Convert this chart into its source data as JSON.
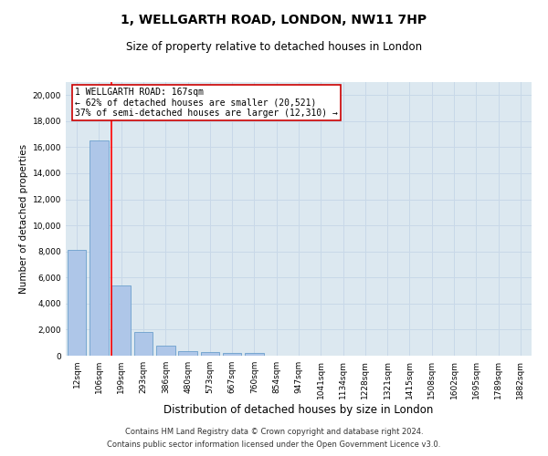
{
  "title": "1, WELLGARTH ROAD, LONDON, NW11 7HP",
  "subtitle": "Size of property relative to detached houses in London",
  "xlabel": "Distribution of detached houses by size in London",
  "ylabel": "Number of detached properties",
  "bar_labels": [
    "12sqm",
    "106sqm",
    "199sqm",
    "293sqm",
    "386sqm",
    "480sqm",
    "573sqm",
    "667sqm",
    "760sqm",
    "854sqm",
    "947sqm",
    "1041sqm",
    "1134sqm",
    "1228sqm",
    "1321sqm",
    "1415sqm",
    "1508sqm",
    "1602sqm",
    "1695sqm",
    "1789sqm",
    "1882sqm"
  ],
  "bar_values": [
    8100,
    16500,
    5400,
    1850,
    780,
    340,
    250,
    230,
    200,
    0,
    0,
    0,
    0,
    0,
    0,
    0,
    0,
    0,
    0,
    0,
    0
  ],
  "bar_color": "#aec6e8",
  "bar_edge_color": "#6ca0cc",
  "ylim": [
    0,
    21000
  ],
  "yticks": [
    0,
    2000,
    4000,
    6000,
    8000,
    10000,
    12000,
    14000,
    16000,
    18000,
    20000
  ],
  "red_line_x": 1.55,
  "annotation_line1": "1 WELLGARTH ROAD: 167sqm",
  "annotation_line2": "← 62% of detached houses are smaller (20,521)",
  "annotation_line3": "37% of semi-detached houses are larger (12,310) →",
  "annotation_box_color": "#cc0000",
  "grid_color": "#c8d8e8",
  "background_color": "#dce8f0",
  "footer_line1": "Contains HM Land Registry data © Crown copyright and database right 2024.",
  "footer_line2": "Contains public sector information licensed under the Open Government Licence v3.0.",
  "title_fontsize": 10,
  "subtitle_fontsize": 8.5,
  "xlabel_fontsize": 8.5,
  "ylabel_fontsize": 7.5,
  "annotation_fontsize": 7,
  "tick_fontsize": 6.5,
  "footer_fontsize": 6
}
